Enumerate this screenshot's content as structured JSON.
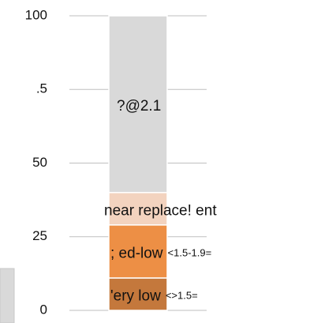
{
  "chart_data": {
    "type": "stacked-bar",
    "categories": [
      null
    ],
    "series": [
      {
        "name": "'ery low",
        "note": "<>1.5=",
        "color": "#c4783c",
        "values": [
          11
        ]
      },
      {
        "name": ";  ed-low",
        "note": "<1.5-1.9=",
        "color": "#ed8f45",
        "values": [
          18
        ]
      },
      {
        "name": "near replace!  ent",
        "color": "#f3d3bf",
        "values": [
          11
        ]
      },
      {
        "name": "?@2.1",
        "color": "#d9d9d9",
        "values": [
          60
        ]
      }
    ],
    "ylim": [
      0,
      100
    ],
    "yticks": [
      0,
      25,
      50,
      {
        "value": 75,
        "label": ".5"
      },
      100
    ],
    "grid": true
  }
}
